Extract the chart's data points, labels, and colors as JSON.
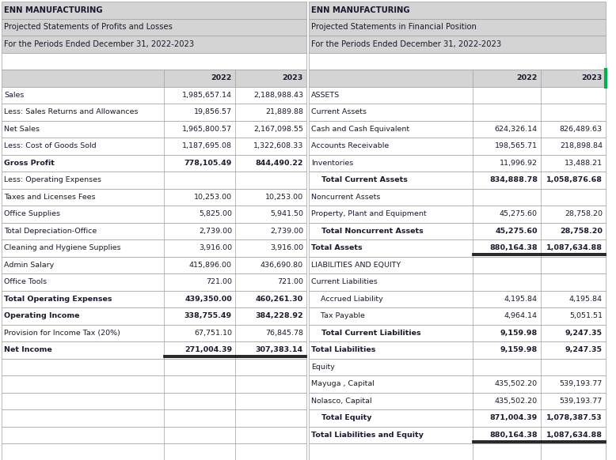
{
  "left_table": {
    "header1": "ENN MANUFACTURING",
    "header2": "Projected Statements of Profits and Losses",
    "header3": "For the Periods Ended December 31, 2022-2023",
    "col_headers": [
      "",
      "2022",
      "2023"
    ],
    "rows": [
      {
        "label": "Sales",
        "v2022": "1,985,657.14",
        "v2023": "2,188,988.43",
        "bold": false
      },
      {
        "label": "Less: Sales Returns and Allowances",
        "v2022": "19,856.57",
        "v2023": "21,889.88",
        "bold": false
      },
      {
        "label": "Net Sales",
        "v2022": "1,965,800.57",
        "v2023": "2,167,098.55",
        "bold": false
      },
      {
        "label": "Less: Cost of Goods Sold",
        "v2022": "1,187,695.08",
        "v2023": "1,322,608.33",
        "bold": false
      },
      {
        "label": "Gross Profit",
        "v2022": "778,105.49",
        "v2023": "844,490.22",
        "bold": true
      },
      {
        "label": "Less: Operating Expenses",
        "v2022": "",
        "v2023": "",
        "bold": false
      },
      {
        "label": "Taxes and Licenses Fees",
        "v2022": "10,253.00",
        "v2023": "10,253.00",
        "bold": false
      },
      {
        "label": "Office Supplies",
        "v2022": "5,825.00",
        "v2023": "5,941.50",
        "bold": false
      },
      {
        "label": "Total Depreciation-Office",
        "v2022": "2,739.00",
        "v2023": "2,739.00",
        "bold": false
      },
      {
        "label": "Cleaning and Hygiene Supplies",
        "v2022": "3,916.00",
        "v2023": "3,916.00",
        "bold": false
      },
      {
        "label": "Admin Salary",
        "v2022": "415,896.00",
        "v2023": "436,690.80",
        "bold": false
      },
      {
        "label": "Office Tools",
        "v2022": "721.00",
        "v2023": "721.00",
        "bold": false
      },
      {
        "label": "Total Operating Expenses",
        "v2022": "439,350.00",
        "v2023": "460,261.30",
        "bold": true
      },
      {
        "label": "Operating Income",
        "v2022": "338,755.49",
        "v2023": "384,228.92",
        "bold": true
      },
      {
        "label": "Provision for Income Tax (20%)",
        "v2022": "67,751.10",
        "v2023": "76,845.78",
        "bold": false
      },
      {
        "label": "Net Income",
        "v2022": "271,004.39",
        "v2023": "307,383.14",
        "bold": true,
        "double_underline": true
      },
      {
        "label": "",
        "v2022": "",
        "v2023": "",
        "bold": false
      },
      {
        "label": "",
        "v2022": "",
        "v2023": "",
        "bold": false
      },
      {
        "label": "",
        "v2022": "",
        "v2023": "",
        "bold": false
      },
      {
        "label": "",
        "v2022": "",
        "v2023": "",
        "bold": false
      },
      {
        "label": "",
        "v2022": "",
        "v2023": "",
        "bold": false
      },
      {
        "label": "",
        "v2022": "",
        "v2023": "",
        "bold": false
      }
    ]
  },
  "right_table": {
    "header1": "ENN MANUFACTURING",
    "header2": "Projected Statements in Financial Position",
    "header3": "For the Periods Ended December 31, 2022-2023",
    "col_headers": [
      "",
      "2022",
      "2023"
    ],
    "rows": [
      {
        "label": "ASSETS",
        "v2022": "",
        "v2023": "",
        "bold": false
      },
      {
        "label": "Current Assets",
        "v2022": "",
        "v2023": "",
        "bold": false
      },
      {
        "label": "Cash and Cash Equivalent",
        "v2022": "624,326.14",
        "v2023": "826,489.63",
        "bold": false
      },
      {
        "label": "Accounts Receivable",
        "v2022": "198,565.71",
        "v2023": "218,898.84",
        "bold": false
      },
      {
        "label": "Inventories",
        "v2022": "11,996.92",
        "v2023": "13,488.21",
        "bold": false
      },
      {
        "label": "    Total Current Assets",
        "v2022": "834,888.78",
        "v2023": "1,058,876.68",
        "bold": true
      },
      {
        "label": "Noncurrent Assets",
        "v2022": "",
        "v2023": "",
        "bold": false
      },
      {
        "label": "Property, Plant and Equipment",
        "v2022": "45,275.60",
        "v2023": "28,758.20",
        "bold": false
      },
      {
        "label": "    Total Noncurrent Assets",
        "v2022": "45,275.60",
        "v2023": "28,758.20",
        "bold": true
      },
      {
        "label": "Total Assets",
        "v2022": "880,164.38",
        "v2023": "1,087,634.88",
        "bold": true,
        "double_underline": true
      },
      {
        "label": "LIABILITIES AND EQUITY",
        "v2022": "",
        "v2023": "",
        "bold": false
      },
      {
        "label": "Current Liabilities",
        "v2022": "",
        "v2023": "",
        "bold": false
      },
      {
        "label": "    Accrued Liability",
        "v2022": "4,195.84",
        "v2023": "4,195.84",
        "bold": false
      },
      {
        "label": "    Tax Payable",
        "v2022": "4,964.14",
        "v2023": "5,051.51",
        "bold": false
      },
      {
        "label": "    Total Current Liabilities",
        "v2022": "9,159.98",
        "v2023": "9,247.35",
        "bold": true
      },
      {
        "label": "Total Liabilities",
        "v2022": "9,159.98",
        "v2023": "9,247.35",
        "bold": true
      },
      {
        "label": "Equity",
        "v2022": "",
        "v2023": "",
        "bold": false
      },
      {
        "label": "Mayuga , Capital",
        "v2022": "435,502.20",
        "v2023": "539,193.77",
        "bold": false
      },
      {
        "label": "Nolasco, Capital",
        "v2022": "435,502.20",
        "v2023": "539,193.77",
        "bold": false
      },
      {
        "label": "    Total Equity",
        "v2022": "871,004.39",
        "v2023": "1,078,387.53",
        "bold": true
      },
      {
        "label": "Total Liabilities and Equity",
        "v2022": "880,164.38",
        "v2023": "1,087,634.88",
        "bold": true,
        "double_underline": true
      },
      {
        "label": "",
        "v2022": "",
        "v2023": "",
        "bold": false
      }
    ]
  },
  "colors": {
    "header_bg": "#d4d4d4",
    "border": "#a0a0a0",
    "text": "#1a1a2e",
    "green_border": "#00b050"
  },
  "font_size": 6.8,
  "header_font_size": 7.2
}
